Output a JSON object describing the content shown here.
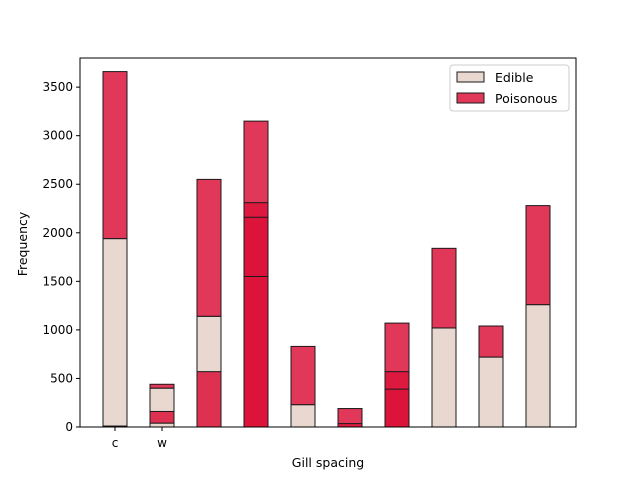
{
  "chart_data": {
    "type": "bar",
    "stacked": "overlapping layers drawn per category (histogram-style), Edible layers under Poisonous layers",
    "xlabel": "Gill spacing",
    "ylabel": "Frequency",
    "ylim": [
      0,
      3800
    ],
    "yticks": [
      0,
      500,
      1000,
      1500,
      2000,
      2500,
      3000,
      3500
    ],
    "xtick_labels": [
      "c",
      "w"
    ],
    "grid": false,
    "legend_position": "top-right",
    "colors": {
      "edible": "#e8d8d0",
      "poisonous": "#dc143c",
      "edge": "#1a1a1a"
    },
    "series": [
      {
        "name": "Edible",
        "bars": [
          {
            "x": 0,
            "bottom": 0,
            "top": 1940
          },
          {
            "x": 0,
            "bottom": 0,
            "top": 10
          },
          {
            "x": 1,
            "bottom": 0,
            "top": 400
          },
          {
            "x": 1,
            "bottom": 0,
            "top": 40
          },
          {
            "x": 2,
            "bottom": 0,
            "top": 1140
          },
          {
            "x": 4,
            "bottom": 0,
            "top": 230
          },
          {
            "x": 7,
            "bottom": 0,
            "top": 1020
          },
          {
            "x": 8,
            "bottom": 0,
            "top": 720
          },
          {
            "x": 9,
            "bottom": 0,
            "top": 1260
          }
        ]
      },
      {
        "name": "Poisonous",
        "bars": [
          {
            "x": 0,
            "bottom": 1940,
            "top": 3660
          },
          {
            "x": 1,
            "bottom": 400,
            "top": 440
          },
          {
            "x": 1,
            "bottom": 40,
            "top": 160
          },
          {
            "x": 2,
            "bottom": 1140,
            "top": 2550
          },
          {
            "x": 2,
            "bottom": 0,
            "top": 570
          },
          {
            "x": 3,
            "bottom": 0,
            "top": 3150
          },
          {
            "x": 3,
            "bottom": 0,
            "top": 2310
          },
          {
            "x": 3,
            "bottom": 0,
            "top": 2160
          },
          {
            "x": 3,
            "bottom": 0,
            "top": 1550
          },
          {
            "x": 4,
            "bottom": 230,
            "top": 830
          },
          {
            "x": 5,
            "bottom": 0,
            "top": 190
          },
          {
            "x": 5,
            "bottom": 0,
            "top": 35
          },
          {
            "x": 6,
            "bottom": 0,
            "top": 1070
          },
          {
            "x": 6,
            "bottom": 0,
            "top": 570
          },
          {
            "x": 6,
            "bottom": 0,
            "top": 390
          },
          {
            "x": 7,
            "bottom": 1020,
            "top": 1840
          },
          {
            "x": 8,
            "bottom": 720,
            "top": 1040
          },
          {
            "x": 9,
            "bottom": 1260,
            "top": 2280
          }
        ]
      }
    ]
  }
}
